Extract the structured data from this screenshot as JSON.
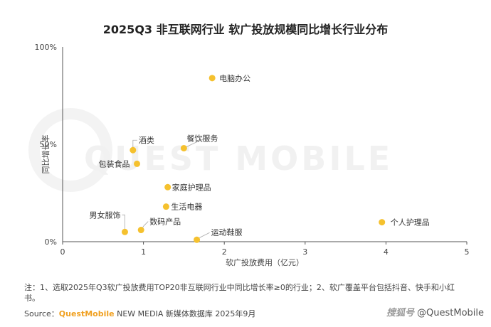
{
  "title": "2025Q3 非互联网行业 软广投放规模同比增长行业分布",
  "watermark": "QUEST MOBILE",
  "note": "注：1、选取2025年Q3软广投放费用TOP20非互联网行业中同比增长率≥0的行业；2、软广覆盖平台包括抖音、快手和小红书。",
  "source": {
    "label": "Source：",
    "brand": "QuestMobile",
    "rest": " NEW MEDIA 新媒体数据库 2025年9月"
  },
  "badge": {
    "site": "搜狐号",
    "account": "@QuestMobile"
  },
  "colors": {
    "point": "#f5c12e",
    "axis": "#555555",
    "leader": "#aaaaaa"
  },
  "chart_data": {
    "type": "scatter",
    "title": "2025Q3 非互联网行业 软广投放规模同比增长行业分布",
    "xlabel": "软广投放费用（亿元）",
    "ylabel": "同比增长率",
    "xlim": [
      0,
      5
    ],
    "ylim": [
      0,
      100
    ],
    "x_ticks": [
      "0",
      "1",
      "2",
      "3",
      "4",
      "5"
    ],
    "y_ticks": [
      "0%",
      "50%",
      "100%"
    ],
    "grid": false,
    "points": [
      {
        "label": "电脑办公",
        "x": 1.85,
        "y": 84
      },
      {
        "label": "餐饮服务",
        "x": 1.5,
        "y": 48
      },
      {
        "label": "酒类",
        "x": 0.87,
        "y": 47
      },
      {
        "label": "包装食品",
        "x": 0.92,
        "y": 40
      },
      {
        "label": "家庭护理品",
        "x": 1.3,
        "y": 28
      },
      {
        "label": "生活电器",
        "x": 1.28,
        "y": 18
      },
      {
        "label": "男女服饰",
        "x": 0.77,
        "y": 5
      },
      {
        "label": "数码产品",
        "x": 0.97,
        "y": 6
      },
      {
        "label": "运动鞋服",
        "x": 1.66,
        "y": 1
      },
      {
        "label": "个人护理品",
        "x": 3.95,
        "y": 10
      }
    ]
  }
}
